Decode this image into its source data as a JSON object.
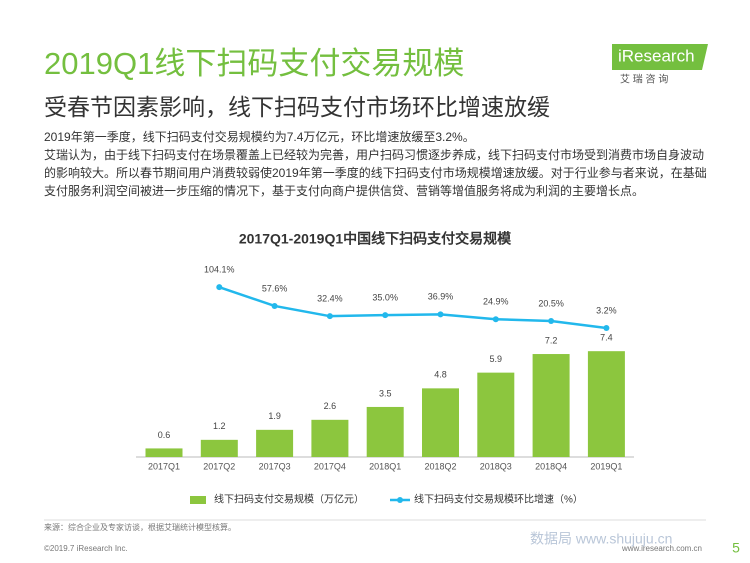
{
  "header": {
    "title": "2019Q1线下扫码支付交易规模",
    "subtitle": "受春节因素影响，线下扫码支付市场环比增速放缓"
  },
  "logo": {
    "name": "iResearch",
    "cn": "艾 瑞 咨 询"
  },
  "paragraphs": [
    "2019年第一季度，线下扫码支付交易规模约为7.4万亿元，环比增速放缓至3.2%。",
    "艾瑞认为，由于线下扫码支付在场景覆盖上已经较为完善，用户扫码习惯逐步养成，线下扫码支付市场受到消费市场自身波动的影响较大。所以春节期间用户消费较弱使2019年第一季度的线下扫码支付市场规模增速放缓。对于行业参与者来说，在基础支付服务利润空间被进一步压缩的情况下，基于支付向商户提供信贷、营销等增值服务将成为利润的主要增长点。"
  ],
  "chart_data": {
    "type": "bar",
    "title": "2017Q1-2019Q1中国线下扫码支付交易规模",
    "categories": [
      "2017Q1",
      "2017Q2",
      "2017Q3",
      "2017Q4",
      "2018Q1",
      "2018Q2",
      "2018Q3",
      "2018Q4",
      "2019Q1"
    ],
    "series": [
      {
        "name": "线下扫码支付交易规模（万亿元）",
        "type": "bar",
        "color": "#8cc63e",
        "values": [
          0.6,
          1.2,
          1.9,
          2.6,
          3.5,
          4.8,
          5.9,
          7.2,
          7.4
        ]
      },
      {
        "name": "线下扫码支付交易规模环比增速（%）",
        "type": "line",
        "axis": "y2",
        "color": "#22b8ec",
        "values": [
          null,
          104.1,
          57.6,
          32.4,
          35.0,
          36.9,
          24.9,
          20.5,
          3.2
        ],
        "value_labels": [
          null,
          "104.1%",
          "57.6%",
          "32.4%",
          "35.0%",
          "36.9%",
          "24.9%",
          "20.5%",
          "3.2%"
        ]
      }
    ]
  },
  "footer": {
    "source": "来源：综合企业及专家访谈，根据艾瑞统计模型核算。",
    "copyright": "©2019.7 iResearch Inc.",
    "url": "www.iresearch.com.cn",
    "page": "5",
    "watermark": "数据局 www.shujuju.cn"
  }
}
